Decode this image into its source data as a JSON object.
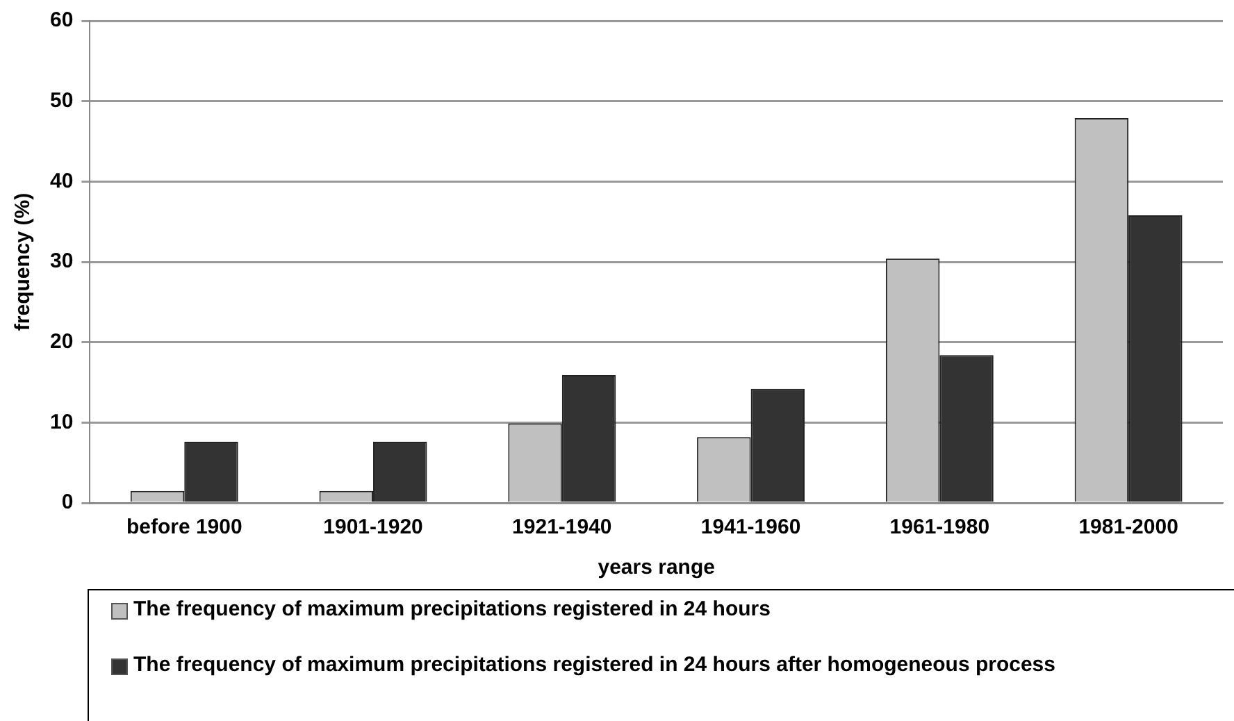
{
  "chart_data": {
    "type": "bar",
    "xlabel": "years range",
    "ylabel": "frequency (%)",
    "categories": [
      "before 1900",
      "1901-1920",
      "1921-1940",
      "1941-1960",
      "1961-1980",
      "1981-2000"
    ],
    "series": [
      {
        "name": "The frequency of maximum precipitations registered in 24 hours",
        "color": "#c0c0c0",
        "values": [
          1.5,
          1.5,
          9.9,
          8.2,
          30.4,
          47.9
        ]
      },
      {
        "name": "The frequency of maximum precipitations registered in 24 hours after homogeneous process",
        "color": "#333333",
        "values": [
          7.6,
          7.6,
          15.9,
          14.2,
          18.4,
          35.8
        ]
      }
    ],
    "ylim": [
      0,
      60
    ],
    "yticks": [
      0,
      10,
      20,
      30,
      40,
      50,
      60
    ],
    "grid": "y",
    "legend": "bottom"
  }
}
